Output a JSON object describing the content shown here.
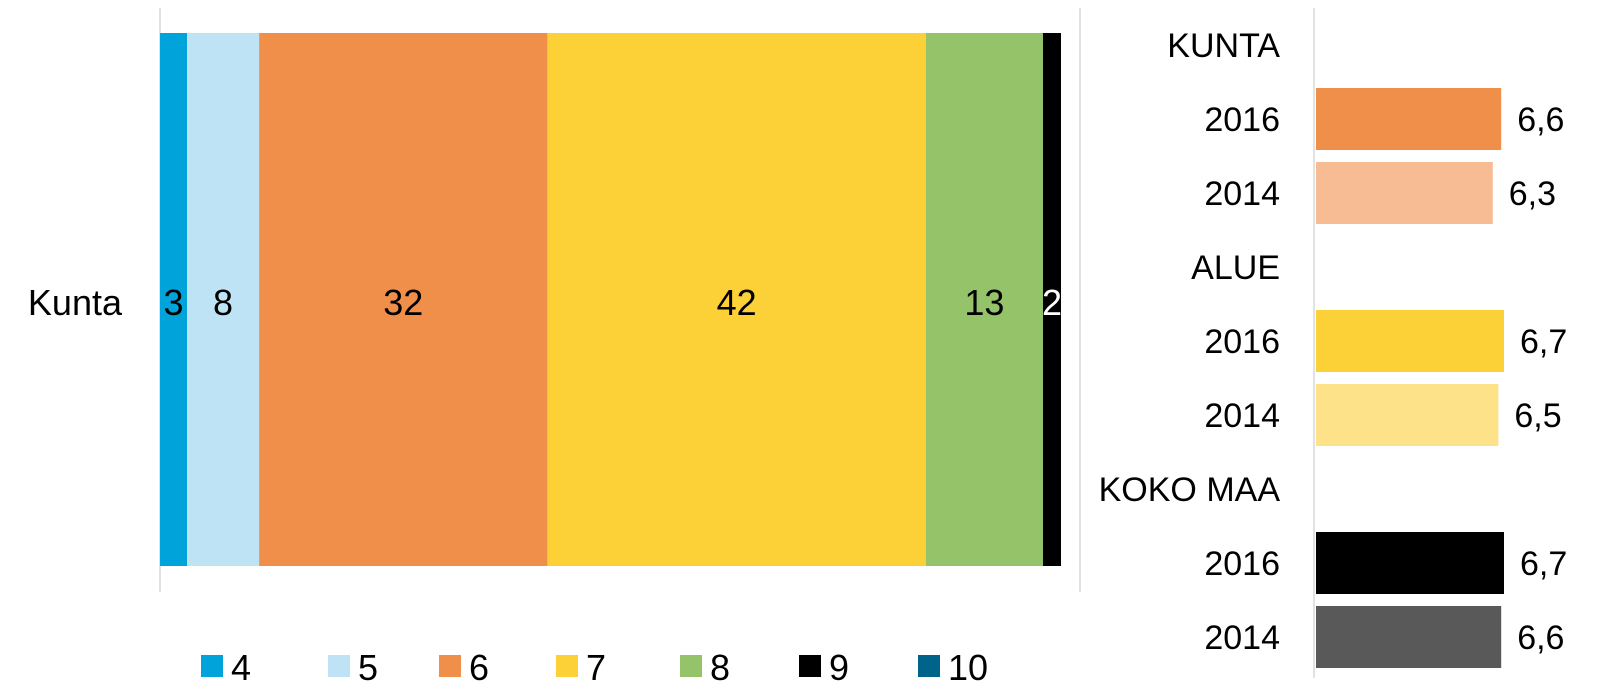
{
  "chart_data": [
    {
      "type": "bar",
      "orientation": "horizontal",
      "stacked": true,
      "categories": [
        "Kunta"
      ],
      "series": [
        {
          "name": "4",
          "values": [
            3
          ],
          "color": "#00A3DA"
        },
        {
          "name": "5",
          "values": [
            8
          ],
          "color": "#BDE3F5"
        },
        {
          "name": "6",
          "values": [
            32
          ],
          "color": "#F08F49"
        },
        {
          "name": "7",
          "values": [
            42
          ],
          "color": "#FCD037"
        },
        {
          "name": "8",
          "values": [
            13
          ],
          "color": "#95C36A"
        },
        {
          "name": "9",
          "values": [
            2
          ],
          "color": "#000000"
        },
        {
          "name": "10",
          "values": [
            0
          ],
          "color": "#00648A"
        }
      ],
      "xlim": [
        0,
        100
      ],
      "grid": false,
      "legend_position": "bottom"
    },
    {
      "type": "bar",
      "orientation": "horizontal",
      "rows": [
        {
          "label": "KUNTA",
          "group_header": true
        },
        {
          "label": "2016",
          "value": 6.6,
          "value_label": "6,6",
          "color": "#F08F49"
        },
        {
          "label": "2014",
          "value": 6.3,
          "value_label": "6,3",
          "color": "#F7BC93"
        },
        {
          "label": "ALUE",
          "group_header": true
        },
        {
          "label": "2016",
          "value": 6.7,
          "value_label": "6,7",
          "color": "#FCD037"
        },
        {
          "label": "2014",
          "value": 6.5,
          "value_label": "6,5",
          "color": "#FDE28A"
        },
        {
          "label": "KOKO MAA",
          "group_header": true
        },
        {
          "label": "2016",
          "value": 6.7,
          "value_label": "6,7",
          "color": "#000000"
        },
        {
          "label": "2014",
          "value": 6.6,
          "value_label": "6,6",
          "color": "#595959"
        }
      ],
      "xlim": [
        0,
        7.2
      ],
      "grid": false
    }
  ]
}
